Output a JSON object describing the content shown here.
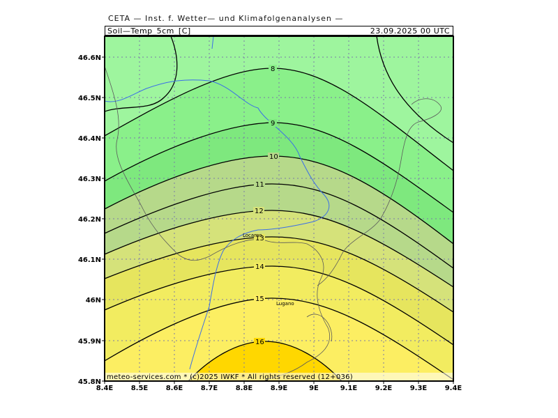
{
  "header": {
    "title": "CETA — Inst. f. Wetter— und Klimafolgenanalysen —",
    "parameter": "Soil—Temp_5cm_[C]",
    "datetime": "23.09.2025 00 UTC"
  },
  "map": {
    "lat_labels": [
      "46.6N",
      "46.5N",
      "46.4N",
      "46.3N",
      "46.2N",
      "46.1N",
      "46N",
      "45.9N",
      "45.8N"
    ],
    "lon_labels": [
      "8.4E",
      "8.5E",
      "8.6E",
      "8.7E",
      "8.8E",
      "8.9E",
      "9E",
      "9.1E",
      "9.2E",
      "9.3E",
      "9.4E"
    ],
    "contour_labels": [
      "8",
      "9",
      "10",
      "11",
      "12",
      "13",
      "14",
      "15",
      "16"
    ],
    "cities": [
      "Locarno",
      "Lugano"
    ],
    "copyright": "meteo-services.com * (c)2025 IWKF * All rights reserved (12+036)",
    "fill_colors": [
      "#9ef59e",
      "#8af08a",
      "#7ee87e",
      "#b6d98a",
      "#d5e27a",
      "#e6e55e",
      "#f2ec60",
      "#fcee62",
      "#ffd700"
    ]
  }
}
